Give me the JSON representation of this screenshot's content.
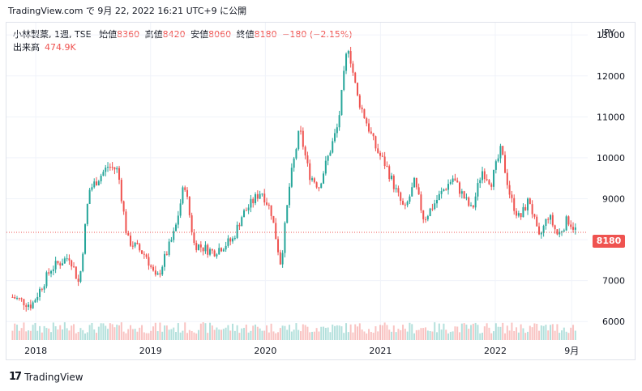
{
  "header": {
    "published": "TradingView.com で 9月 22, 2022 16:21 UTC+9 に公開"
  },
  "legend": {
    "symbol": "小林製薬, 1週, TSE",
    "open_label": "始値",
    "open": "8360",
    "high_label": "高値",
    "high": "8420",
    "low_label": "安値",
    "low": "8060",
    "close_label": "終値",
    "close": "8180",
    "change": "−180 (−2.15%)",
    "volume_label": "出来高",
    "volume": "474.9K"
  },
  "currency": "JPY",
  "last_price_label": "8180",
  "brand": {
    "name": "TradingView"
  },
  "colors": {
    "up": "#26a69a",
    "down": "#ef5350",
    "grid": "#f0f3fa"
  },
  "chart_data": {
    "type": "candlestick",
    "title": "",
    "y_ticks": [
      6000,
      7000,
      8000,
      9000,
      10000,
      11000,
      12000,
      13000
    ],
    "x_ticks": [
      "2018",
      "2019",
      "2020",
      "2021",
      "2022",
      "9月"
    ],
    "ylim": [
      5550,
      13300
    ],
    "last_price": 8180,
    "grid": true,
    "series": [
      {
        "name": "close",
        "x": [
          "2017-10",
          "2017-12",
          "2018-02",
          "2018-04",
          "2018-05",
          "2018-06",
          "2018-08",
          "2018-09",
          "2018-10",
          "2018-12",
          "2019-01",
          "2019-03",
          "2019-04",
          "2019-05",
          "2019-07",
          "2019-09",
          "2019-10",
          "2019-12",
          "2020-01",
          "2020-02",
          "2020-03",
          "2020-04",
          "2020-05",
          "2020-06",
          "2020-08",
          "2020-09",
          "2020-10",
          "2020-12",
          "2021-01",
          "2021-02",
          "2021-03",
          "2021-04",
          "2021-05",
          "2021-07",
          "2021-08",
          "2021-10",
          "2021-11",
          "2021-12",
          "2022-01",
          "2022-02",
          "2022-03",
          "2022-04",
          "2022-05",
          "2022-06",
          "2022-07",
          "2022-08",
          "2022-09"
        ],
        "values": [
          6600,
          6400,
          7300,
          7600,
          6900,
          9200,
          9800,
          9700,
          8000,
          7600,
          7000,
          8200,
          9400,
          7900,
          7700,
          8000,
          8600,
          9200,
          8700,
          7400,
          9400,
          10700,
          9600,
          9300,
          10800,
          12800,
          11500,
          10200,
          9800,
          9200,
          8700,
          9400,
          8500,
          9200,
          9500,
          8700,
          9700,
          9400,
          10200,
          9000,
          8500,
          9000,
          8000,
          8600,
          8100,
          8500,
          8180
        ]
      }
    ],
    "volume": {
      "name": "出来高",
      "latest": "474.9K"
    }
  }
}
